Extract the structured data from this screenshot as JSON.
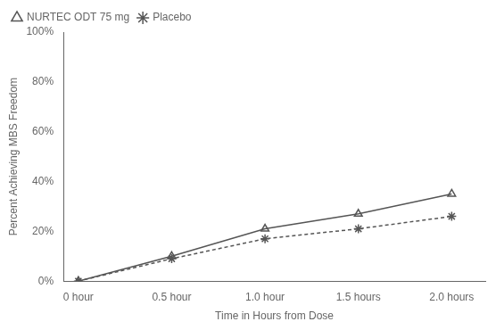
{
  "chart_data": {
    "type": "line",
    "x_label": "Time in Hours from Dose",
    "y_label": "Percent Achieving MBS Freedom",
    "x": [
      0,
      0.5,
      1.0,
      1.5,
      2.0
    ],
    "series": [
      {
        "name": "NURTEC ODT 75 mg",
        "color": "#555555",
        "marker": "triangle",
        "line_style": "solid",
        "values": [
          0.0,
          0.1,
          0.21,
          0.27,
          0.35
        ]
      },
      {
        "name": "Placebo",
        "color": "#555555",
        "marker": "star",
        "line_style": "dashed",
        "values": [
          0.0,
          0.09,
          0.17,
          0.21,
          0.26
        ]
      }
    ],
    "xlim": [
      -0.08,
      2.18
    ],
    "xticks": [
      {
        "value": 0,
        "label": "0 hour"
      },
      {
        "value": 0.5,
        "label": "0.5 hour"
      },
      {
        "value": 1.0,
        "label": "1.0 hour"
      },
      {
        "value": 1.5,
        "label": "1.5 hours"
      },
      {
        "value": 2.0,
        "label": "2.0 hours"
      }
    ],
    "ylim": [
      0.0,
      1.0
    ],
    "yticks": [
      {
        "value": 0.0,
        "label": "0%"
      },
      {
        "value": 0.2,
        "label": "20%"
      },
      {
        "value": 0.4,
        "label": "40%"
      },
      {
        "value": 0.6,
        "label": "60%"
      },
      {
        "value": 0.8,
        "label": "80%"
      },
      {
        "value": 1.0,
        "label": "100%"
      }
    ],
    "grid": false,
    "legend": "upper left"
  }
}
